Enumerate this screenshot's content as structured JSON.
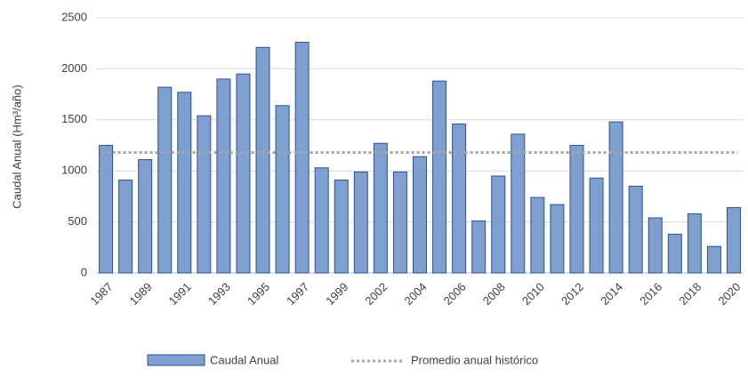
{
  "chart_data": {
    "type": "bar",
    "y_label": "Caudal Anual (Hm³/año)",
    "categories": [
      "1987",
      null,
      "1989",
      null,
      "1991",
      null,
      "1993",
      null,
      "1995",
      null,
      "1997",
      null,
      "1999",
      null,
      "2002",
      null,
      "2004",
      null,
      "2006",
      null,
      "2008",
      null,
      "2010",
      null,
      "2012",
      null,
      "2014",
      null,
      "2016",
      null,
      "2018",
      null,
      "2020"
    ],
    "series": [
      {
        "name": "Caudal Anual",
        "color": "#7f9fd0",
        "values": [
          1250,
          910,
          1110,
          1820,
          1770,
          1540,
          1900,
          1950,
          2210,
          1640,
          2260,
          1030,
          910,
          990,
          1270,
          990,
          1140,
          1880,
          1460,
          510,
          950,
          1360,
          740,
          670,
          1250,
          930,
          1480,
          850,
          540,
          380,
          580,
          260,
          640
        ]
      }
    ],
    "reference_line": {
      "name": "Promedio anual histórico",
      "value": 1180,
      "color": "#a6a6a6"
    },
    "ylim": [
      0,
      2500
    ],
    "yticks": [
      0,
      500,
      1000,
      1500,
      2000,
      2500
    ],
    "grid": true
  }
}
